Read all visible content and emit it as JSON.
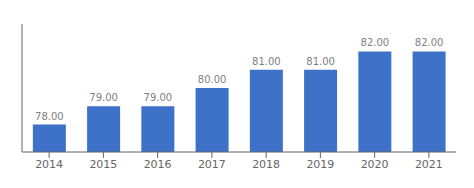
{
  "chart_data": {
    "type": "bar",
    "categories": [
      "2014",
      "2015",
      "2016",
      "2017",
      "2018",
      "2019",
      "2020",
      "2021"
    ],
    "values": [
      78,
      79,
      79,
      80,
      81,
      81,
      82,
      82
    ],
    "value_labels": [
      "78.00",
      "79.00",
      "79.00",
      "80.00",
      "81.00",
      "81.00",
      "82.00",
      "82.00"
    ],
    "color": "#3d72c8",
    "ylim": [
      76.5,
      83.5
    ],
    "data_labels": true,
    "tick_labels": "x",
    "grid": false
  }
}
